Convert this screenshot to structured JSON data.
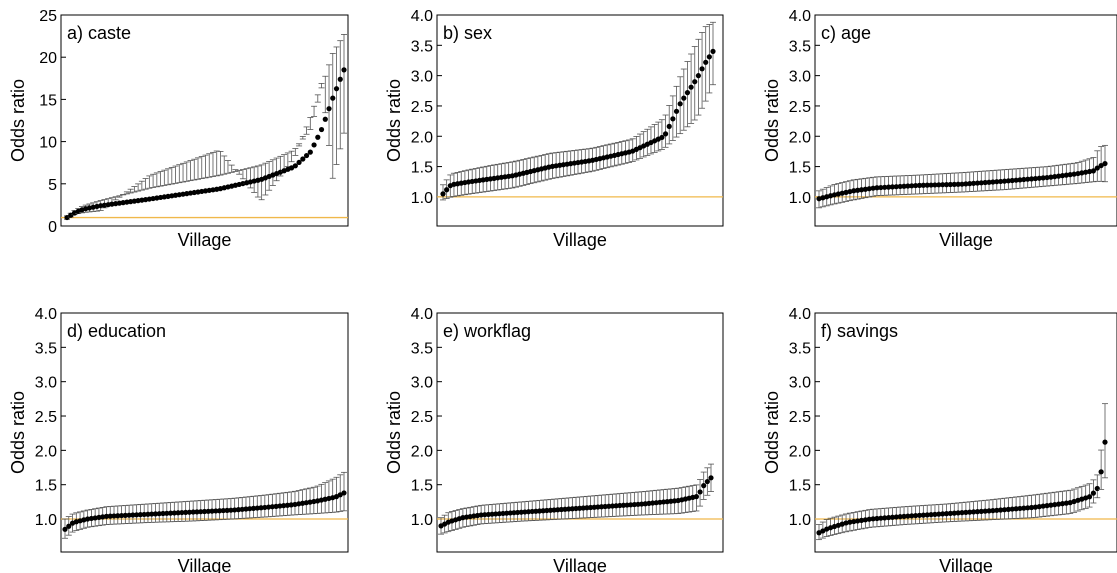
{
  "chart_data": [
    {
      "type": "scatter",
      "panel_label": "a) caste",
      "xlabel": "Village",
      "ylabel": "Odds ratio",
      "ylim": [
        0,
        25
      ],
      "yticks": [
        0,
        5,
        10,
        15,
        20,
        25
      ],
      "reference_line": 1,
      "n": 75,
      "series": [
        {
          "key": "low",
          "values": [
            0.8,
            1.4,
            1.6,
            1.7,
            1.8,
            6.0,
            9.0,
            3.0,
            8.0,
            13.0,
            17.0,
            5.5,
            11.0
          ]
        },
        {
          "key": "mid",
          "values": [
            1.0,
            1.6,
            2.0,
            2.2,
            2.4,
            3.2,
            4.4,
            5.5,
            7.0,
            8.8,
            11.5,
            15.2,
            18.5
          ]
        },
        {
          "key": "high",
          "values": [
            1.2,
            1.9,
            2.4,
            2.7,
            3.0,
            4.5,
            6.0,
            7.2,
            9.0,
            11.5,
            16.5,
            20.5,
            22.7
          ]
        }
      ],
      "curve_x": [
        0.0,
        0.03,
        0.06,
        0.09,
        0.12,
        0.3,
        0.55,
        0.7,
        0.82,
        0.88,
        0.92,
        0.96,
        1.0
      ]
    },
    {
      "type": "scatter",
      "panel_label": "b) sex",
      "xlabel": "Village",
      "ylabel": "Odds ratio",
      "ylim": [
        0.8,
        4.0
      ],
      "yticks": [
        1.0,
        1.5,
        2.0,
        2.5,
        3.0,
        3.5,
        4.0
      ],
      "reference_line": 1,
      "n": 75,
      "series": [
        {
          "key": "low",
          "values": [
            0.95,
            1.0,
            1.05,
            1.1,
            1.15,
            1.3,
            1.42,
            1.58,
            1.8,
            2.05,
            2.3,
            2.55,
            2.85
          ]
        },
        {
          "key": "mid",
          "values": [
            1.05,
            1.2,
            1.25,
            1.3,
            1.35,
            1.5,
            1.6,
            1.75,
            2.0,
            2.55,
            2.95,
            3.2,
            3.4
          ]
        },
        {
          "key": "high",
          "values": [
            1.2,
            1.38,
            1.45,
            1.52,
            1.58,
            1.72,
            1.8,
            1.95,
            2.3,
            3.0,
            3.55,
            3.8,
            3.88
          ]
        }
      ],
      "curve_x": [
        0.0,
        0.03,
        0.1,
        0.18,
        0.26,
        0.4,
        0.55,
        0.7,
        0.82,
        0.88,
        0.94,
        0.97,
        1.0
      ]
    },
    {
      "type": "scatter",
      "panel_label": "c) age",
      "xlabel": "Village",
      "ylabel": "Odds ratio",
      "ylim": [
        0.8,
        4.0
      ],
      "yticks": [
        1.0,
        1.5,
        2.0,
        2.5,
        3.0,
        3.5,
        4.0
      ],
      "reference_line": 1,
      "n": 75,
      "series": [
        {
          "key": "low",
          "values": [
            0.82,
            0.88,
            0.95,
            1.02,
            1.05,
            1.08,
            1.12,
            1.18,
            1.22,
            1.25,
            1.26,
            1.25
          ]
        },
        {
          "key": "mid",
          "values": [
            0.97,
            1.03,
            1.1,
            1.15,
            1.19,
            1.21,
            1.26,
            1.32,
            1.38,
            1.43,
            1.5,
            1.55
          ]
        },
        {
          "key": "high",
          "values": [
            1.1,
            1.2,
            1.28,
            1.33,
            1.36,
            1.4,
            1.45,
            1.5,
            1.56,
            1.65,
            1.82,
            1.85
          ]
        }
      ],
      "curve_x": [
        0.0,
        0.05,
        0.12,
        0.2,
        0.35,
        0.5,
        0.65,
        0.8,
        0.9,
        0.96,
        0.98,
        1.0
      ]
    },
    {
      "type": "scatter",
      "panel_label": "d) education",
      "xlabel": "Village",
      "ylabel": "Odds ratio",
      "ylim": [
        0.8,
        4.0
      ],
      "yticks": [
        1.0,
        1.5,
        2.0,
        2.5,
        3.0,
        3.5,
        4.0
      ],
      "reference_line": 1,
      "n": 75,
      "series": [
        {
          "key": "low",
          "values": [
            0.72,
            0.82,
            0.88,
            0.92,
            0.95,
            0.97,
            1.0,
            1.03,
            1.06,
            1.08,
            1.1,
            1.12
          ]
        },
        {
          "key": "mid",
          "values": [
            0.85,
            0.95,
            1.0,
            1.04,
            1.07,
            1.1,
            1.13,
            1.17,
            1.21,
            1.26,
            1.32,
            1.38
          ]
        },
        {
          "key": "high",
          "values": [
            1.0,
            1.08,
            1.13,
            1.18,
            1.22,
            1.26,
            1.3,
            1.35,
            1.4,
            1.47,
            1.6,
            1.68
          ]
        }
      ],
      "curve_x": [
        0.0,
        0.03,
        0.08,
        0.15,
        0.3,
        0.45,
        0.6,
        0.72,
        0.82,
        0.9,
        0.97,
        1.0
      ]
    },
    {
      "type": "scatter",
      "panel_label": "e) workflag",
      "xlabel": "Village",
      "ylabel": "Odds ratio",
      "ylim": [
        0.8,
        4.0
      ],
      "yticks": [
        1.0,
        1.5,
        2.0,
        2.5,
        3.0,
        3.5,
        4.0
      ],
      "reference_line": 1,
      "n": 75,
      "series": [
        {
          "key": "low",
          "values": [
            0.78,
            0.82,
            0.88,
            0.93,
            0.97,
            1.0,
            1.03,
            1.06,
            1.08,
            1.12,
            1.3,
            1.4
          ]
        },
        {
          "key": "mid",
          "values": [
            0.9,
            0.96,
            1.02,
            1.06,
            1.1,
            1.14,
            1.18,
            1.22,
            1.27,
            1.33,
            1.5,
            1.6
          ]
        },
        {
          "key": "high",
          "values": [
            1.02,
            1.1,
            1.15,
            1.2,
            1.25,
            1.3,
            1.35,
            1.4,
            1.45,
            1.5,
            1.7,
            1.8
          ]
        }
      ],
      "curve_x": [
        0.0,
        0.03,
        0.08,
        0.15,
        0.3,
        0.45,
        0.6,
        0.75,
        0.88,
        0.95,
        0.975,
        1.0
      ]
    },
    {
      "type": "scatter",
      "panel_label": "f) savings",
      "xlabel": "Village",
      "ylabel": "Odds ratio",
      "ylim": [
        0.8,
        4.0
      ],
      "yticks": [
        1.0,
        1.5,
        2.0,
        2.5,
        3.0,
        3.5,
        4.0
      ],
      "reference_line": 1,
      "n": 75,
      "series": [
        {
          "key": "low",
          "values": [
            0.7,
            0.75,
            0.82,
            0.88,
            0.92,
            0.96,
            0.99,
            1.02,
            1.08,
            1.18,
            1.35,
            1.6
          ]
        },
        {
          "key": "mid",
          "values": [
            0.8,
            0.86,
            0.95,
            1.0,
            1.04,
            1.08,
            1.12,
            1.17,
            1.24,
            1.33,
            1.48,
            2.12
          ]
        },
        {
          "key": "high",
          "values": [
            0.92,
            1.0,
            1.08,
            1.14,
            1.18,
            1.22,
            1.28,
            1.35,
            1.42,
            1.52,
            1.68,
            2.68
          ]
        }
      ],
      "curve_x": [
        0.0,
        0.03,
        0.1,
        0.18,
        0.3,
        0.45,
        0.6,
        0.75,
        0.88,
        0.95,
        0.98,
        1.0
      ]
    }
  ],
  "colors": {
    "marker": "#000000",
    "error_bar": "#555555",
    "reference_line": "#f0b84a",
    "frame": "#000000"
  }
}
